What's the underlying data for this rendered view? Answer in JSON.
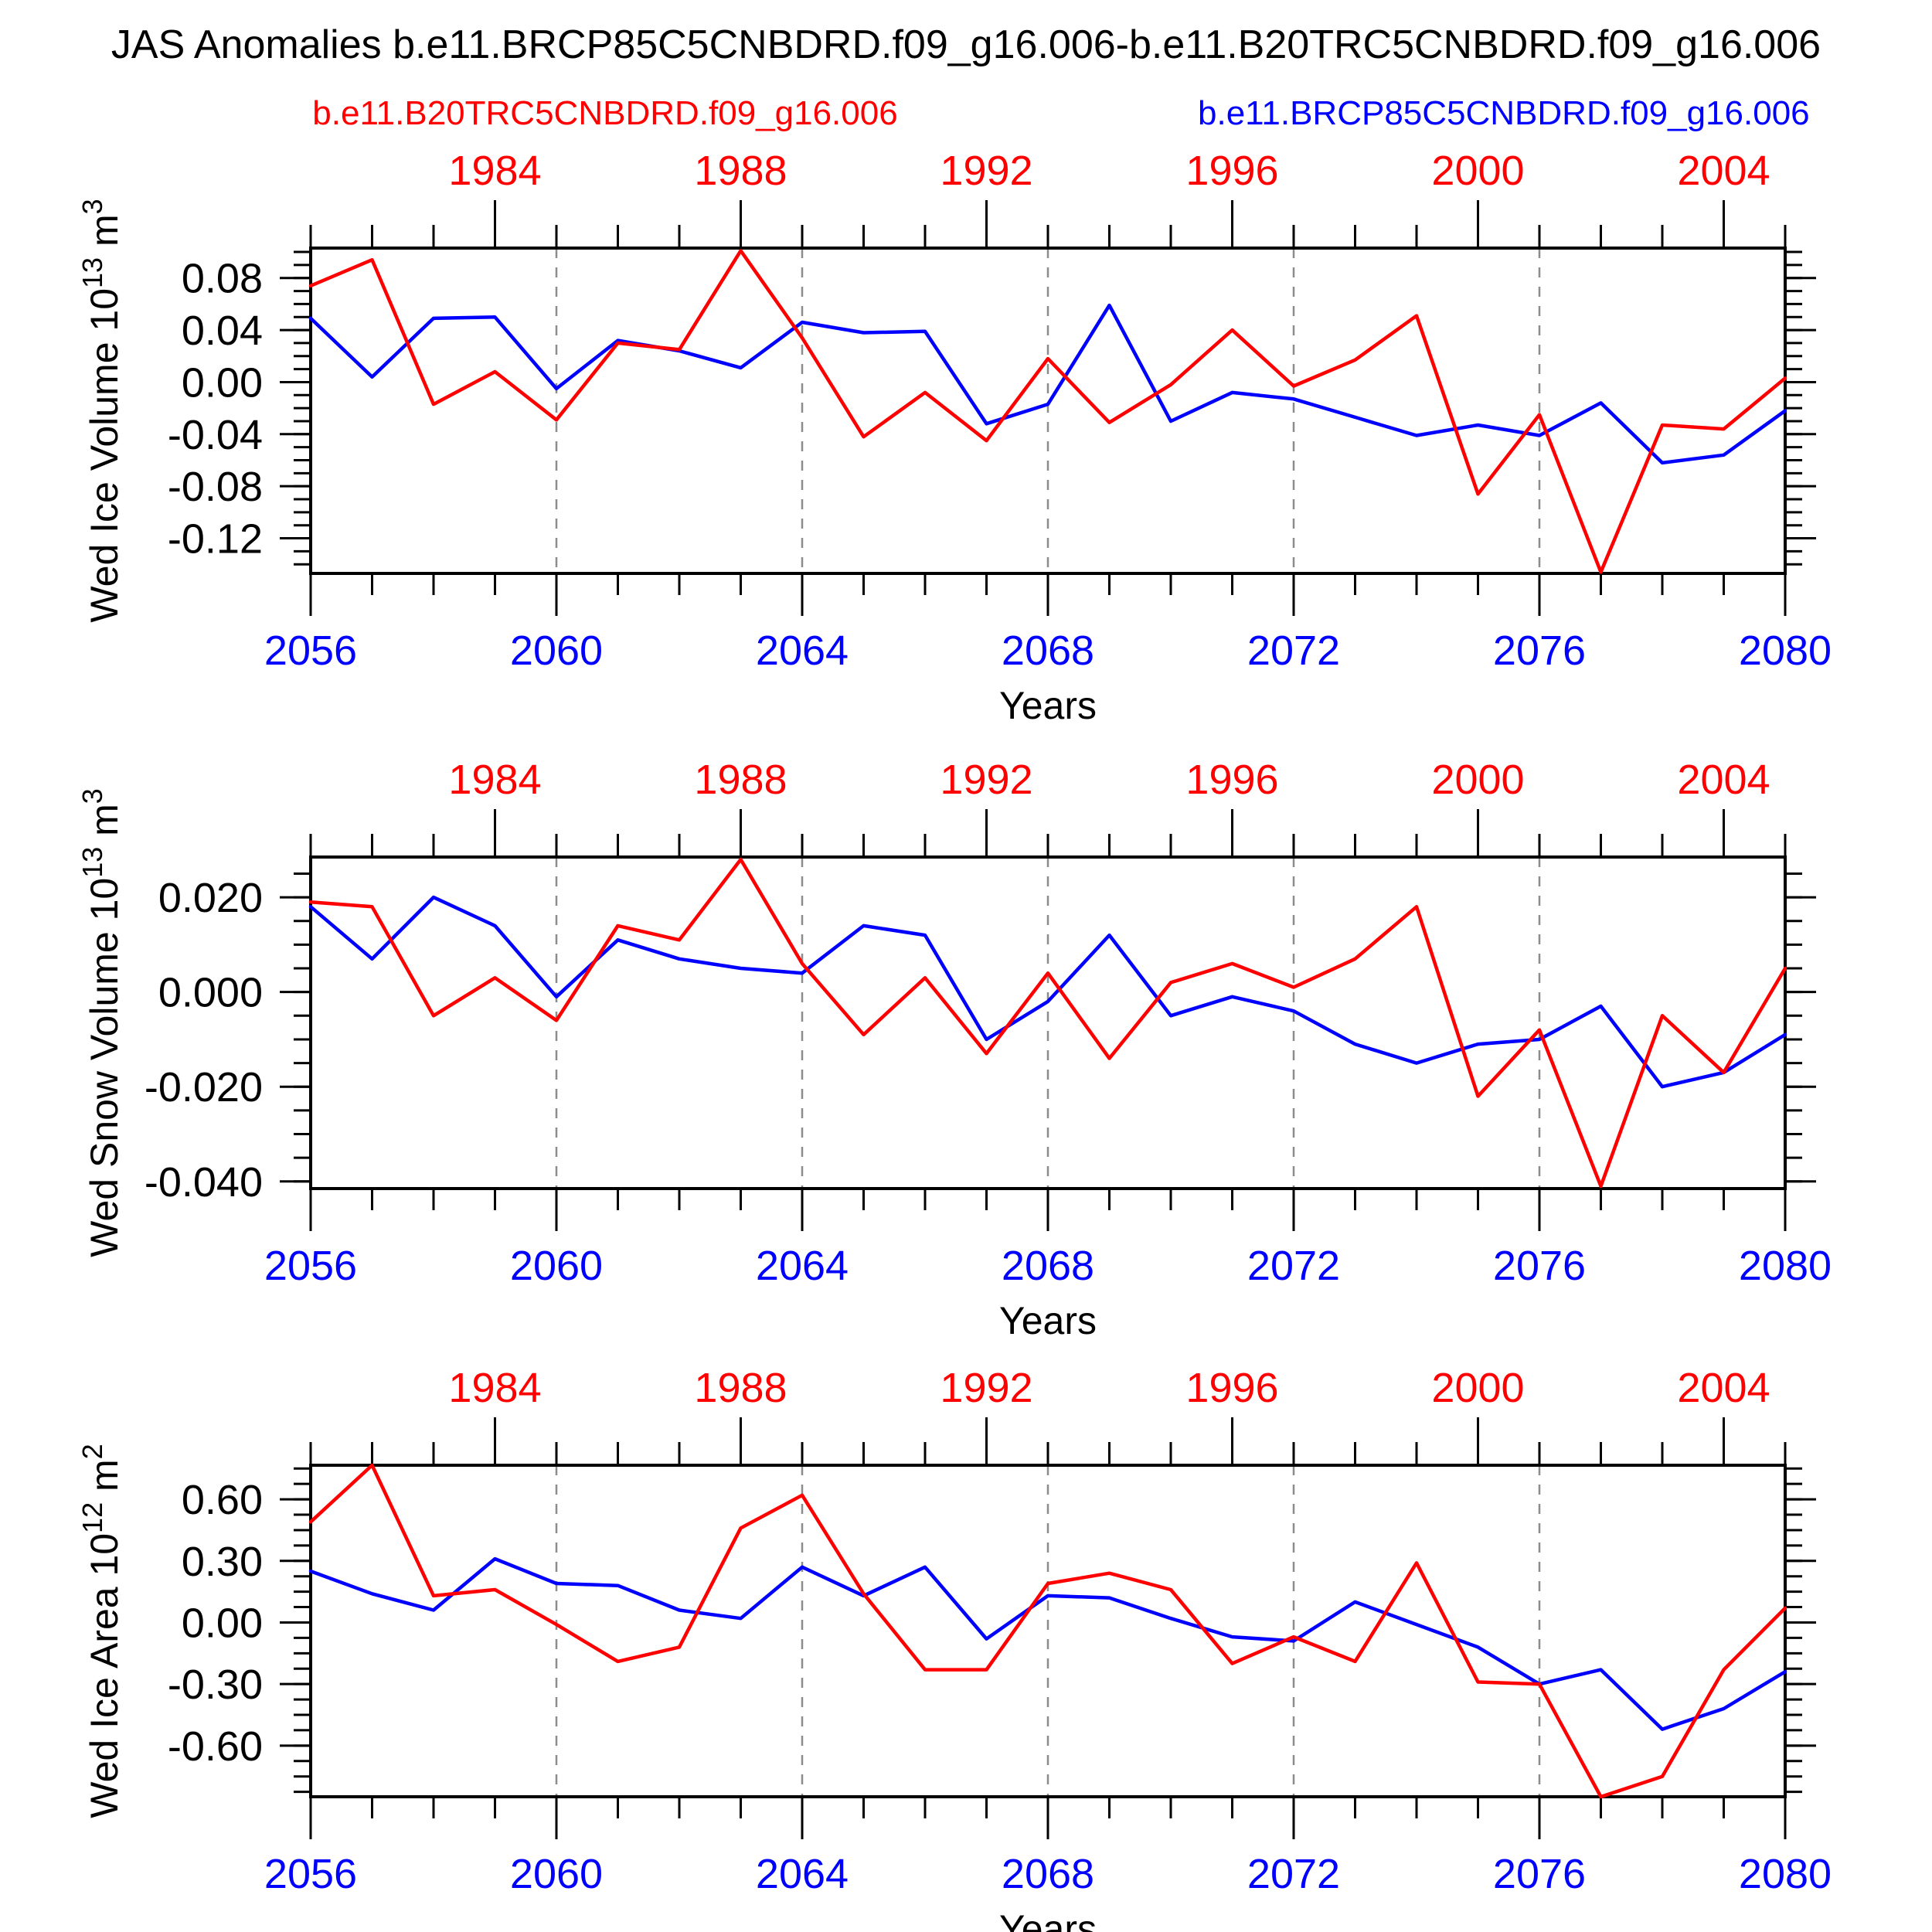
{
  "title": "JAS Anomalies b.e11.BRCP85C5CNBDRD.f09_g16.006-b.e11.B20TRC5CNBDRD.f09_g16.006",
  "legend": {
    "red_label": "b.e11.B20TRC5CNBDRD.f09_g16.006",
    "blue_label": "b.e11.BRCP85C5CNBDRD.f09_g16.006"
  },
  "colors": {
    "red": "#ff0000",
    "blue": "#0000ff",
    "grid": "#8c8c8c",
    "frame": "#000000",
    "text": "#000000"
  },
  "x_axis": {
    "label": "Years",
    "bottom_start_year": 2056,
    "bottom_end_year": 2080,
    "bottom_tick_labels": [
      "2056",
      "2060",
      "2064",
      "2068",
      "2072",
      "2076",
      "2080"
    ],
    "top_start_year": 1981,
    "top_end_year": 2005,
    "top_tick_labels": [
      "1984",
      "1988",
      "1992",
      "1996",
      "2000",
      "2004"
    ],
    "dashed_gridline_years": [
      2060,
      2064,
      2068,
      2072,
      2076
    ]
  },
  "chart_data": [
    {
      "type": "line",
      "ylabel_text": "Wed Ice Volume 10^13 m^3",
      "ylabel": {
        "base": "Wed Ice Volume 10",
        "exp": "13",
        "unit": " m",
        "unit_exp": "3"
      },
      "ylim": [
        -0.147,
        0.103
      ],
      "y_minor_step": 0.01,
      "yticks": [
        {
          "v": 0.08,
          "label": "0.08"
        },
        {
          "v": 0.04,
          "label": "0.04"
        },
        {
          "v": 0.0,
          "label": "0.00"
        },
        {
          "v": -0.04,
          "label": "-0.04"
        },
        {
          "v": -0.08,
          "label": "-0.08"
        },
        {
          "v": -0.12,
          "label": "-0.12"
        }
      ],
      "x": [
        2056,
        2057,
        2058,
        2059,
        2060,
        2061,
        2062,
        2063,
        2064,
        2065,
        2066,
        2067,
        2068,
        2069,
        2070,
        2071,
        2072,
        2073,
        2074,
        2075,
        2076,
        2077,
        2078,
        2079,
        2080
      ],
      "series": [
        {
          "name": "b.e11.B20TRC5CNBDRD.f09_g16.006",
          "color": "red",
          "values": [
            0.074,
            0.094,
            -0.017,
            0.008,
            -0.029,
            0.03,
            0.025,
            0.101,
            0.034,
            -0.042,
            -0.008,
            -0.045,
            0.018,
            -0.031,
            -0.002,
            0.04,
            -0.003,
            0.017,
            0.051,
            -0.086,
            -0.025,
            -0.146,
            -0.033,
            -0.036,
            0.003
          ]
        },
        {
          "name": "b.e11.BRCP85C5CNBDRD.f09_g16.006",
          "color": "blue",
          "values": [
            0.049,
            0.004,
            0.049,
            0.05,
            -0.005,
            0.032,
            0.024,
            0.011,
            0.046,
            0.038,
            0.039,
            -0.032,
            -0.017,
            0.059,
            -0.03,
            -0.008,
            -0.013,
            -0.027,
            -0.041,
            -0.033,
            -0.041,
            -0.016,
            -0.062,
            -0.056,
            -0.022
          ]
        }
      ]
    },
    {
      "type": "line",
      "ylabel_text": "Wed Snow Volume 10^13 m^3",
      "ylabel": {
        "base": "Wed Snow Volume 10",
        "exp": "13",
        "unit": " m",
        "unit_exp": "3"
      },
      "ylim": [
        -0.0415,
        0.0285
      ],
      "y_minor_step": 0.005,
      "yticks": [
        {
          "v": 0.02,
          "label": "0.020"
        },
        {
          "v": 0.0,
          "label": "0.000"
        },
        {
          "v": -0.02,
          "label": "-0.020"
        },
        {
          "v": -0.04,
          "label": "-0.040"
        }
      ],
      "x": [
        2056,
        2057,
        2058,
        2059,
        2060,
        2061,
        2062,
        2063,
        2064,
        2065,
        2066,
        2067,
        2068,
        2069,
        2070,
        2071,
        2072,
        2073,
        2074,
        2075,
        2076,
        2077,
        2078,
        2079,
        2080
      ],
      "series": [
        {
          "name": "b.e11.B20TRC5CNBDRD.f09_g16.006",
          "color": "red",
          "values": [
            0.019,
            0.018,
            -0.005,
            0.003,
            -0.006,
            0.014,
            0.011,
            0.028,
            0.006,
            -0.009,
            0.003,
            -0.013,
            0.004,
            -0.014,
            0.002,
            0.006,
            0.001,
            0.007,
            0.018,
            -0.022,
            -0.008,
            -0.041,
            -0.005,
            -0.017,
            0.005
          ]
        },
        {
          "name": "b.e11.BRCP85C5CNBDRD.f09_g16.006",
          "color": "blue",
          "values": [
            0.018,
            0.007,
            0.02,
            0.014,
            -0.001,
            0.011,
            0.007,
            0.005,
            0.004,
            0.014,
            0.012,
            -0.01,
            -0.002,
            0.012,
            -0.005,
            -0.001,
            -0.004,
            -0.011,
            -0.015,
            -0.011,
            -0.01,
            -0.003,
            -0.02,
            -0.017,
            -0.009
          ]
        }
      ]
    },
    {
      "type": "line",
      "ylabel_text": "Wed Ice Area 10^12 m^2",
      "ylabel": {
        "base": "Wed Ice Area 10",
        "exp": "12",
        "unit": " m",
        "unit_exp": "2"
      },
      "ylim": [
        -0.849,
        0.766
      ],
      "y_minor_step": 0.075,
      "yticks": [
        {
          "v": 0.6,
          "label": "0.60"
        },
        {
          "v": 0.3,
          "label": "0.30"
        },
        {
          "v": 0.0,
          "label": "0.00"
        },
        {
          "v": -0.3,
          "label": "-0.30"
        },
        {
          "v": -0.6,
          "label": "-0.60"
        }
      ],
      "x": [
        2056,
        2057,
        2058,
        2059,
        2060,
        2061,
        2062,
        2063,
        2064,
        2065,
        2066,
        2067,
        2068,
        2069,
        2070,
        2071,
        2072,
        2073,
        2074,
        2075,
        2076,
        2077,
        2078,
        2079,
        2080
      ],
      "series": [
        {
          "name": "b.e11.B20TRC5CNBDRD.f09_g16.006",
          "color": "red",
          "values": [
            0.49,
            0.766,
            0.13,
            0.16,
            -0.01,
            -0.19,
            -0.12,
            0.46,
            0.62,
            0.14,
            -0.23,
            -0.23,
            0.19,
            0.24,
            0.16,
            -0.2,
            -0.07,
            -0.19,
            0.29,
            -0.29,
            -0.3,
            -0.849,
            -0.75,
            -0.23,
            0.07
          ]
        },
        {
          "name": "b.e11.BRCP85C5CNBDRD.f09_g16.006",
          "color": "blue",
          "values": [
            0.25,
            0.14,
            0.06,
            0.31,
            0.19,
            0.18,
            0.06,
            0.02,
            0.27,
            0.13,
            0.27,
            -0.08,
            0.13,
            0.12,
            0.02,
            -0.07,
            -0.09,
            0.1,
            -0.01,
            -0.12,
            -0.3,
            -0.23,
            -0.52,
            -0.42,
            -0.24
          ]
        }
      ]
    }
  ]
}
